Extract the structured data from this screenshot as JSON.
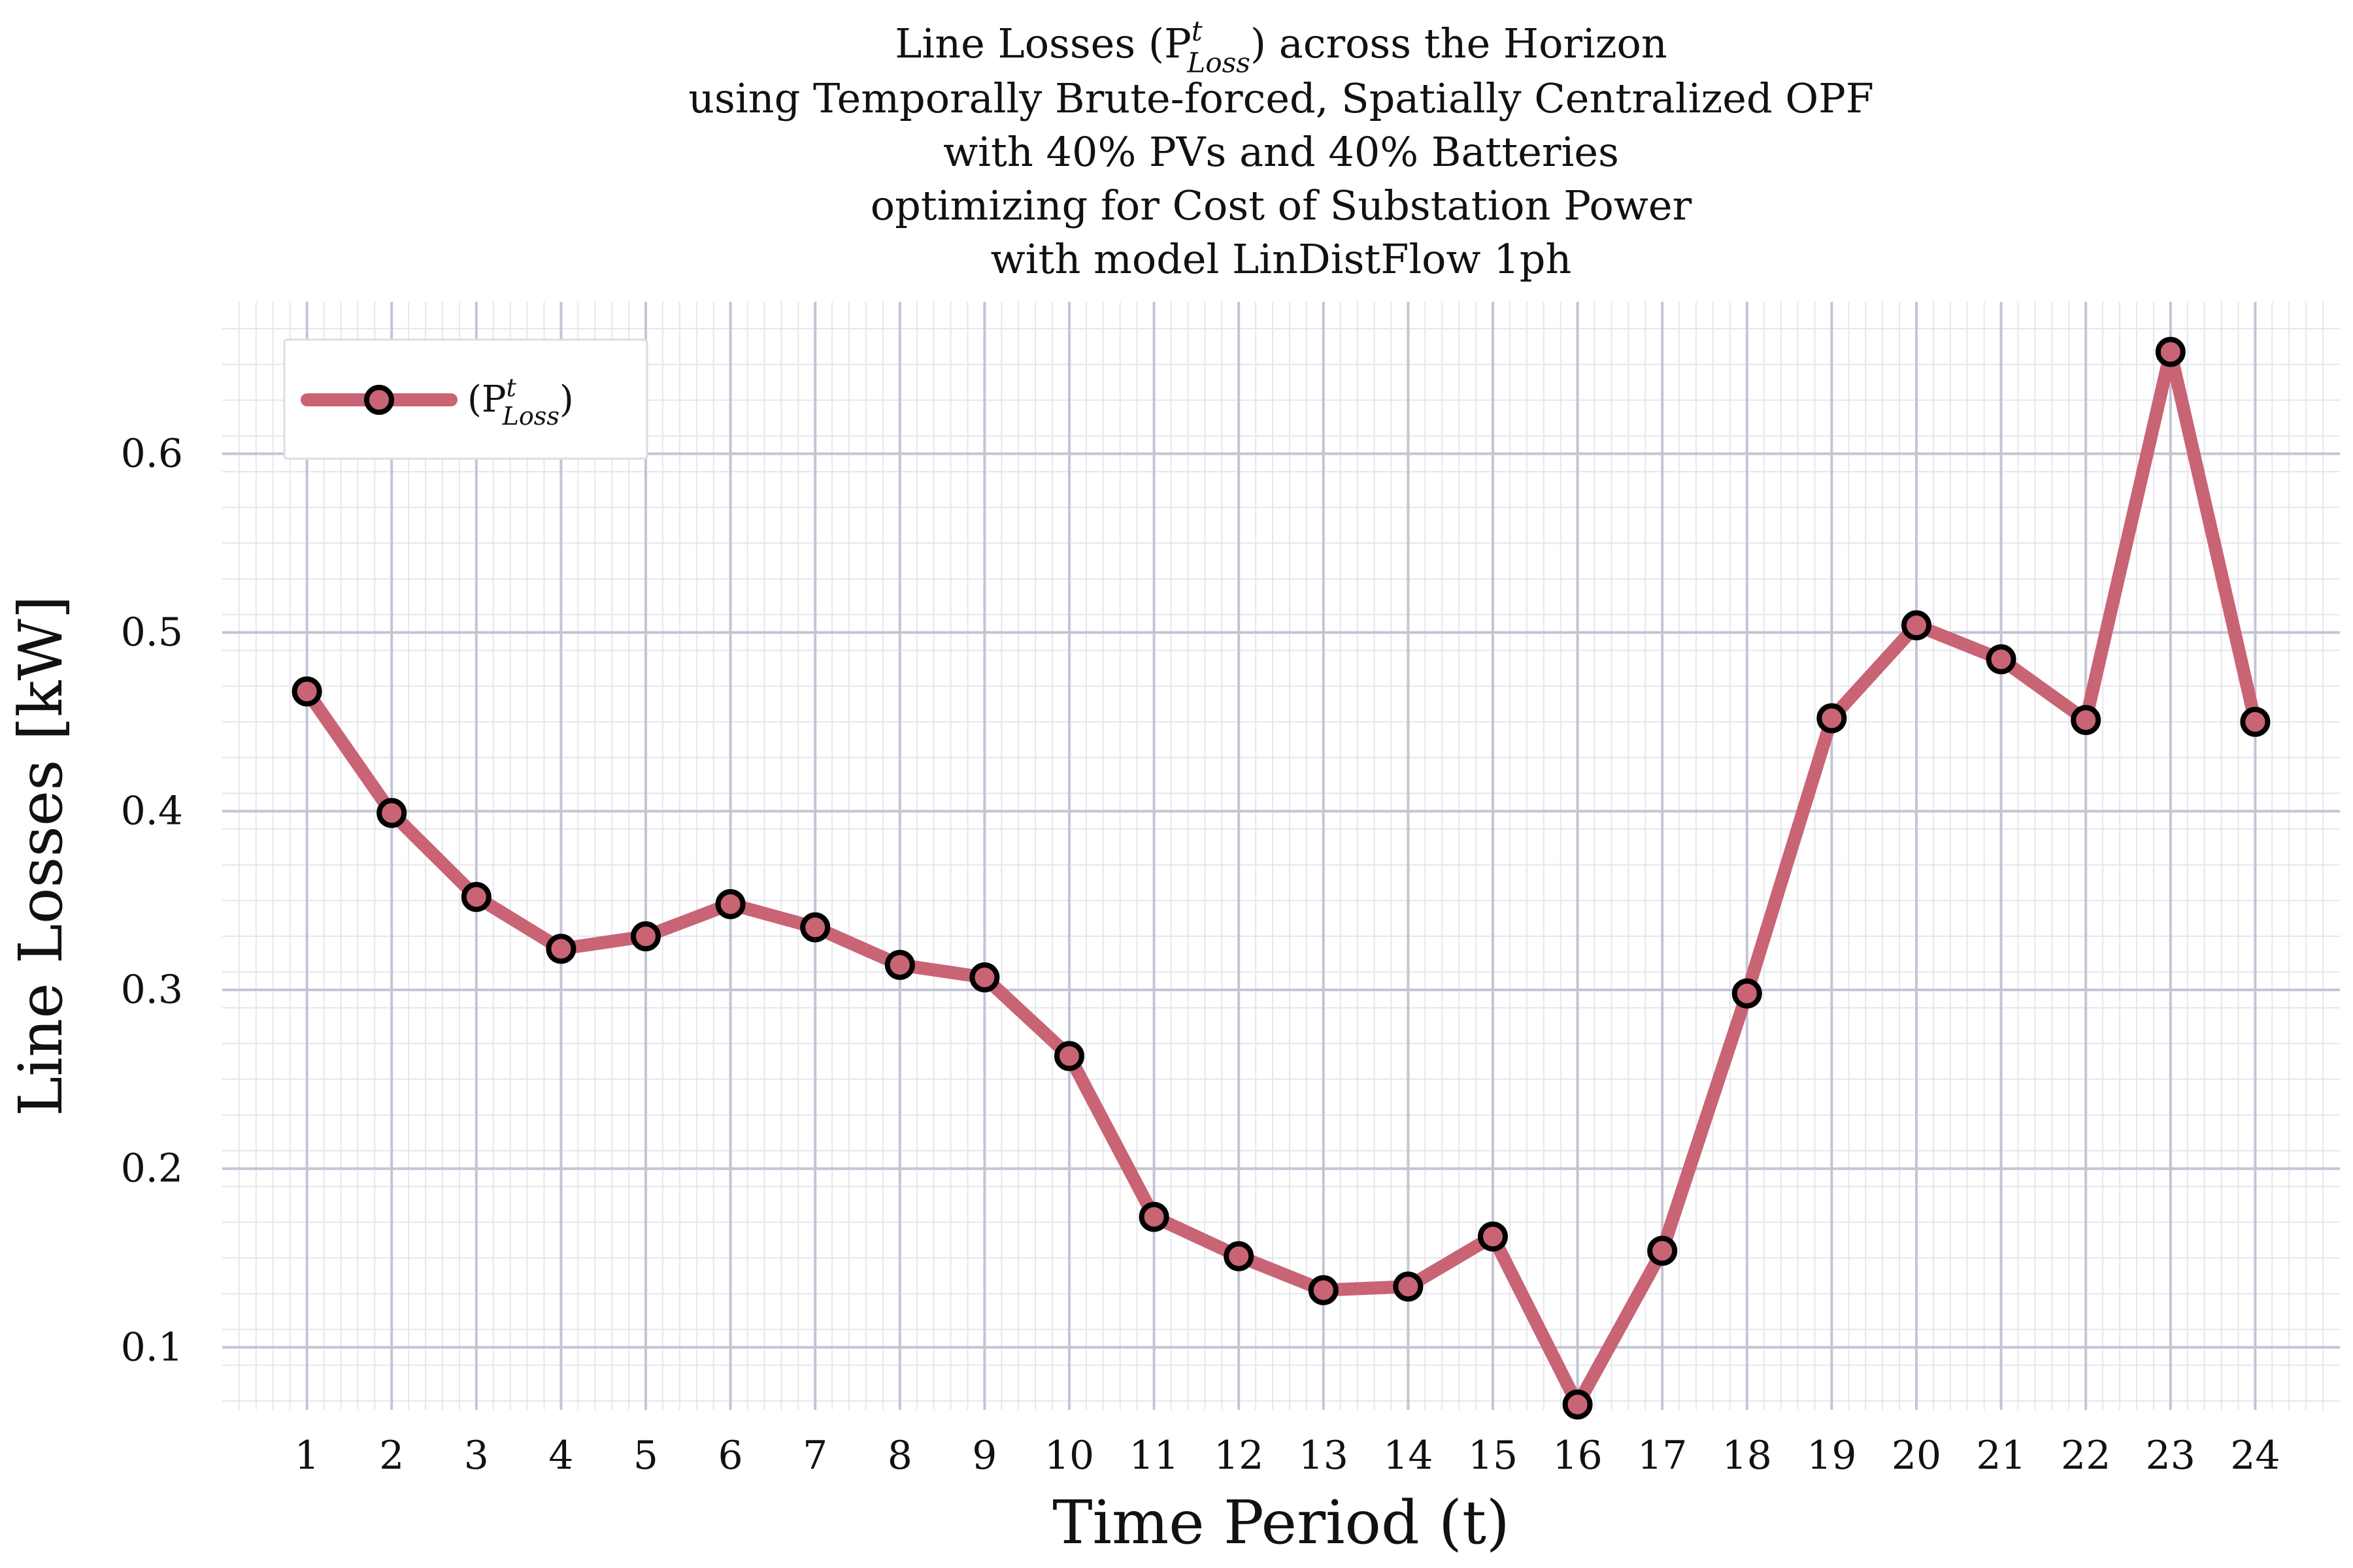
{
  "chart_data": {
    "type": "line",
    "title_lines": [
      "Line Losses (P^t_Loss) across the Horizon",
      "using Temporally Brute-forced, Spatially Centralized OPF",
      "with 40% PVs and 40% Batteries",
      "optimizing for Cost of Substation Power",
      "with model LinDistFlow 1ph"
    ],
    "xlabel": "Time Period (t)",
    "ylabel": "Line Losses [kW]",
    "x": [
      1,
      2,
      3,
      4,
      5,
      6,
      7,
      8,
      9,
      10,
      11,
      12,
      13,
      14,
      15,
      16,
      17,
      18,
      19,
      20,
      21,
      22,
      23,
      24
    ],
    "series": [
      {
        "name": "(P^t_Loss)",
        "color": "#c96474",
        "marker": "circle",
        "values": [
          0.467,
          0.399,
          0.352,
          0.323,
          0.33,
          0.348,
          0.335,
          0.314,
          0.307,
          0.263,
          0.173,
          0.151,
          0.132,
          0.134,
          0.162,
          0.068,
          0.154,
          0.298,
          0.452,
          0.504,
          0.485,
          0.451,
          0.657,
          0.45
        ]
      }
    ],
    "xlim": [
      0,
      25
    ],
    "ylim": [
      0.065,
      0.685
    ],
    "yticks": [
      0.1,
      0.2,
      0.3,
      0.4,
      0.5,
      0.6
    ],
    "ytick_labels": [
      "0.1",
      "0.2",
      "0.3",
      "0.4",
      "0.5",
      "0.6"
    ],
    "xtick_labels": [
      "1",
      "2",
      "3",
      "4",
      "5",
      "6",
      "7",
      "8",
      "9",
      "10",
      "11",
      "12",
      "13",
      "14",
      "15",
      "16",
      "17",
      "18",
      "19",
      "20",
      "21",
      "22",
      "23",
      "24"
    ],
    "grid": true,
    "legend_position": "top-left"
  }
}
